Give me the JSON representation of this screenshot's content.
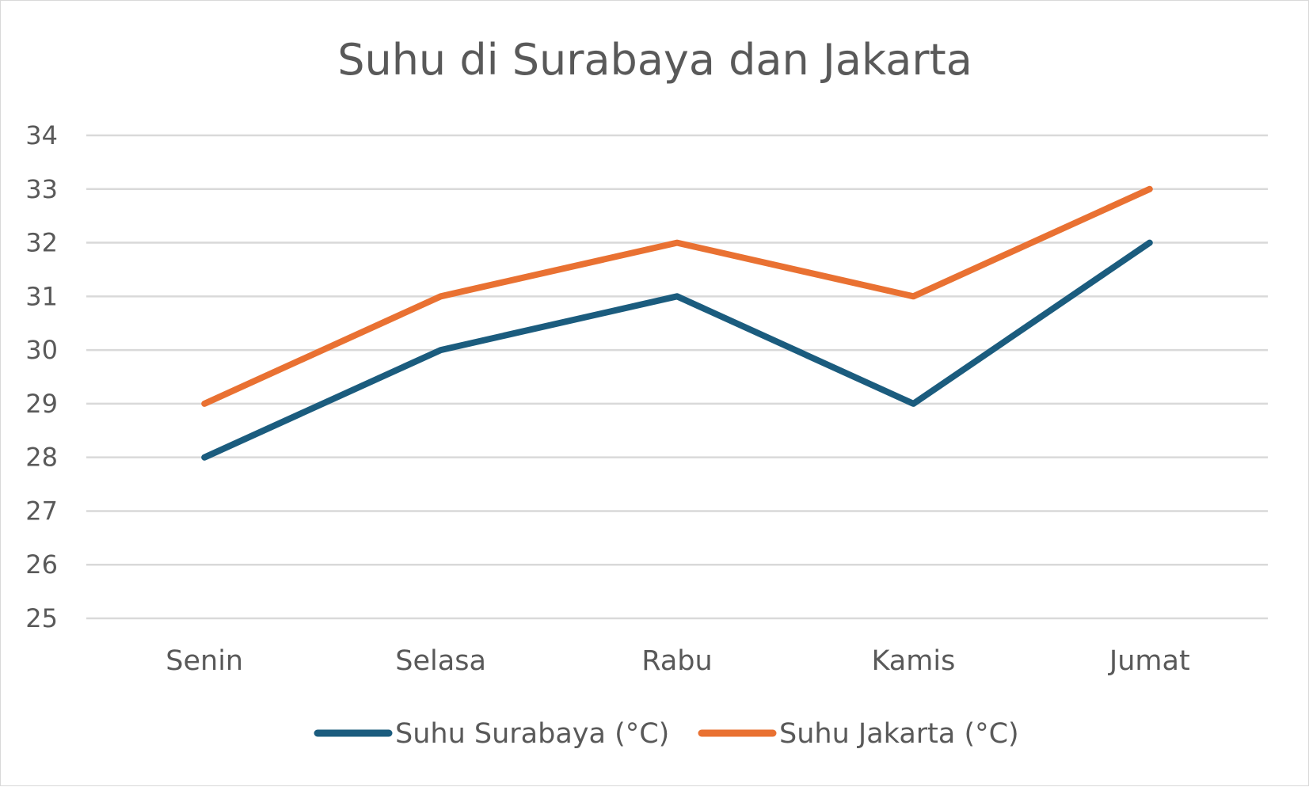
{
  "chart_data": {
    "type": "line",
    "title": "Suhu di Surabaya dan Jakarta",
    "xlabel": "",
    "ylabel": "",
    "categories": [
      "Senin",
      "Selasa",
      "Rabu",
      "Kamis",
      "Jumat"
    ],
    "series": [
      {
        "name": "Suhu Surabaya (°C)",
        "values": [
          28,
          30,
          31,
          29,
          32
        ],
        "color": "#1b5c7e"
      },
      {
        "name": "Suhu Jakarta (°C)",
        "values": [
          29,
          31,
          32,
          31,
          33
        ],
        "color": "#e97132"
      }
    ],
    "ylim": [
      25,
      34
    ],
    "yticks": [
      25,
      26,
      27,
      28,
      29,
      30,
      31,
      32,
      33,
      34
    ],
    "grid": "horizontal",
    "legend_position": "bottom"
  }
}
